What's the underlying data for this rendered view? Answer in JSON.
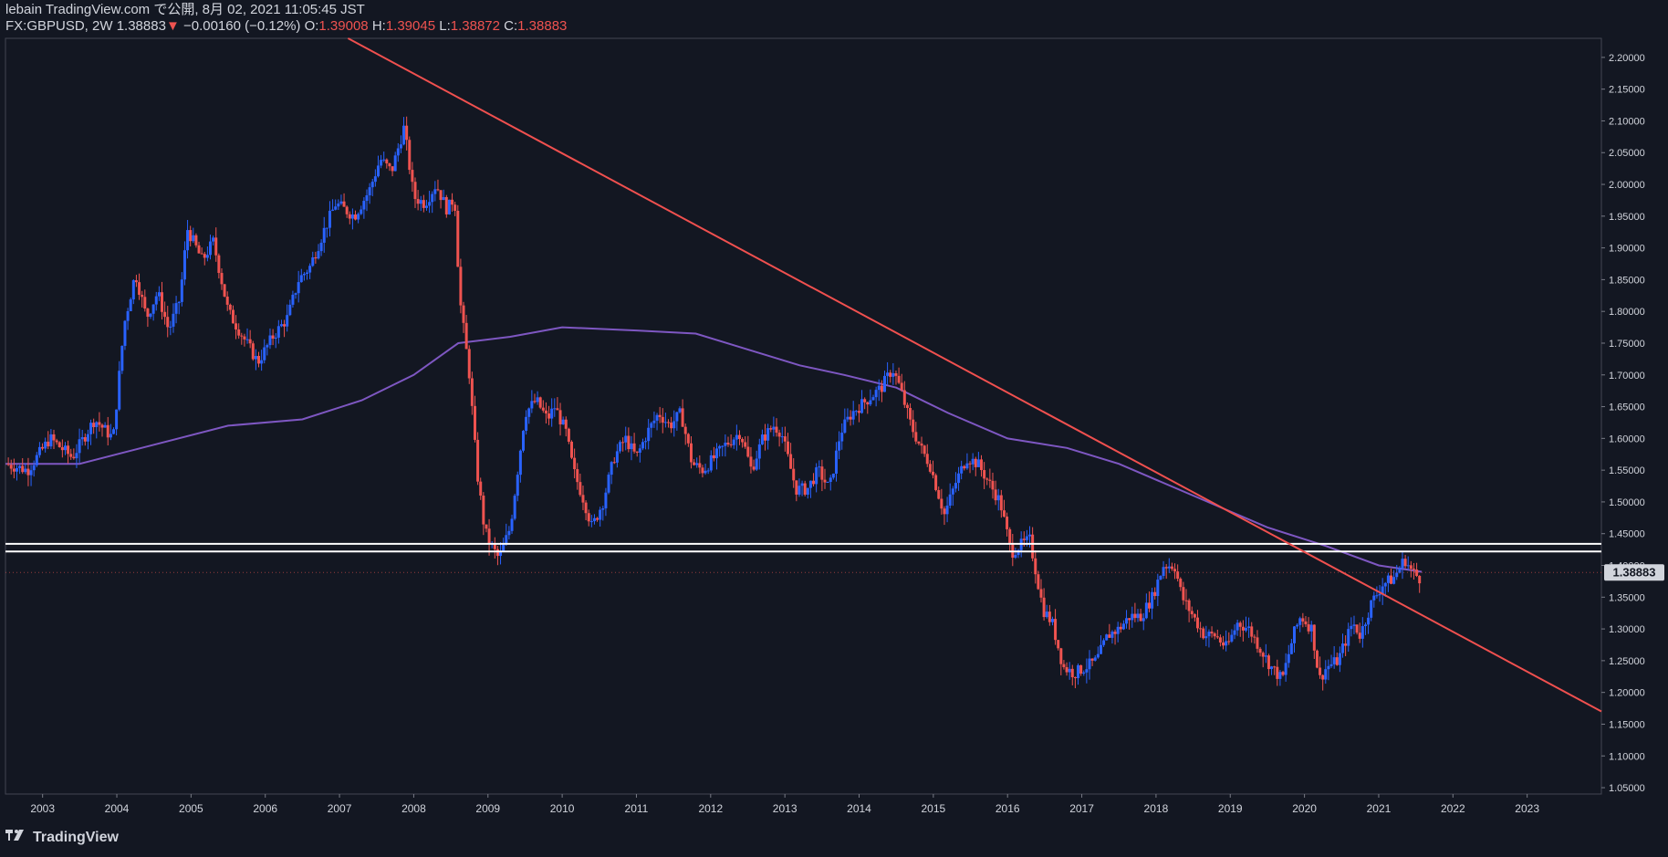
{
  "header": {
    "publish_line": "lebain TradingView.com で公開, 8月 02, 2021 11:05:45 JST",
    "symbol": "FX:GBPUSD, 2W",
    "last": "1.38883",
    "change_arrow": "▼",
    "change": "−0.00160 (−0.12%)",
    "o_label": "O:",
    "o_value": "1.39008",
    "h_label": "H:",
    "h_value": "1.39045",
    "l_label": "L:",
    "l_value": "1.38872",
    "c_label": "C:",
    "c_value": "1.38883"
  },
  "footer": {
    "brand": "TradingView",
    "logo_icon": "tradingview-logo-icon"
  },
  "colors": {
    "background": "#131722",
    "up": "#2962ff",
    "down": "#ef5350",
    "ma": "#7e57c2",
    "trendline": "#f0504f",
    "hline": "#ffffff",
    "price_label_bg": "#d1d4dc",
    "text": "#d1d4dc"
  },
  "chart_data": {
    "type": "candlestick",
    "symbol": "GBPUSD",
    "timeframe": "2W",
    "xlim": [
      2002.5,
      2024.0
    ],
    "ylim": [
      1.04,
      2.23
    ],
    "x_ticks": [
      "2003",
      "2004",
      "2005",
      "2006",
      "2007",
      "2008",
      "2009",
      "2010",
      "2011",
      "2012",
      "2013",
      "2014",
      "2015",
      "2016",
      "2017",
      "2018",
      "2019",
      "2020",
      "2021",
      "2022",
      "2023"
    ],
    "y_ticks": [
      "1.05000",
      "1.10000",
      "1.15000",
      "1.20000",
      "1.25000",
      "1.30000",
      "1.35000",
      "1.40000",
      "1.45000",
      "1.50000",
      "1.55000",
      "1.60000",
      "1.65000",
      "1.70000",
      "1.75000",
      "1.80000",
      "1.85000",
      "1.90000",
      "1.95000",
      "2.00000",
      "2.05000",
      "2.10000",
      "2.15000",
      "2.20000"
    ],
    "current_price_label": "1.38883",
    "price_path": [
      [
        2002.5,
        1.56
      ],
      [
        2002.8,
        1.55
      ],
      [
        2003.1,
        1.6
      ],
      [
        2003.4,
        1.57
      ],
      [
        2003.7,
        1.63
      ],
      [
        2003.95,
        1.6
      ],
      [
        2004.1,
        1.78
      ],
      [
        2004.25,
        1.86
      ],
      [
        2004.4,
        1.79
      ],
      [
        2004.55,
        1.83
      ],
      [
        2004.7,
        1.77
      ],
      [
        2004.85,
        1.82
      ],
      [
        2004.95,
        1.93
      ],
      [
        2005.15,
        1.88
      ],
      [
        2005.3,
        1.91
      ],
      [
        2005.5,
        1.8
      ],
      [
        2005.7,
        1.76
      ],
      [
        2005.9,
        1.72
      ],
      [
        2006.1,
        1.76
      ],
      [
        2006.3,
        1.79
      ],
      [
        2006.45,
        1.85
      ],
      [
        2006.6,
        1.87
      ],
      [
        2006.8,
        1.93
      ],
      [
        2006.95,
        1.97
      ],
      [
        2007.2,
        1.95
      ],
      [
        2007.4,
        1.99
      ],
      [
        2007.55,
        2.04
      ],
      [
        2007.7,
        2.02
      ],
      [
        2007.87,
        2.09
      ],
      [
        2008.0,
        1.98
      ],
      [
        2008.15,
        1.97
      ],
      [
        2008.3,
        2.0
      ],
      [
        2008.45,
        1.96
      ],
      [
        2008.55,
        1.98
      ],
      [
        2008.62,
        1.82
      ],
      [
        2008.75,
        1.7
      ],
      [
        2008.85,
        1.55
      ],
      [
        2008.95,
        1.46
      ],
      [
        2009.0,
        1.44
      ],
      [
        2009.15,
        1.41
      ],
      [
        2009.3,
        1.46
      ],
      [
        2009.4,
        1.55
      ],
      [
        2009.5,
        1.64
      ],
      [
        2009.65,
        1.66
      ],
      [
        2009.8,
        1.63
      ],
      [
        2009.9,
        1.65
      ],
      [
        2010.05,
        1.61
      ],
      [
        2010.15,
        1.55
      ],
      [
        2010.3,
        1.5
      ],
      [
        2010.4,
        1.46
      ],
      [
        2010.55,
        1.5
      ],
      [
        2010.7,
        1.57
      ],
      [
        2010.85,
        1.6
      ],
      [
        2011.0,
        1.57
      ],
      [
        2011.15,
        1.61
      ],
      [
        2011.3,
        1.64
      ],
      [
        2011.45,
        1.62
      ],
      [
        2011.6,
        1.64
      ],
      [
        2011.75,
        1.56
      ],
      [
        2011.9,
        1.55
      ],
      [
        2012.05,
        1.57
      ],
      [
        2012.2,
        1.59
      ],
      [
        2012.4,
        1.61
      ],
      [
        2012.55,
        1.55
      ],
      [
        2012.7,
        1.6
      ],
      [
        2012.85,
        1.62
      ],
      [
        2012.95,
        1.61
      ],
      [
        2013.15,
        1.52
      ],
      [
        2013.3,
        1.52
      ],
      [
        2013.45,
        1.55
      ],
      [
        2013.6,
        1.52
      ],
      [
        2013.75,
        1.61
      ],
      [
        2013.9,
        1.64
      ],
      [
        2014.1,
        1.66
      ],
      [
        2014.3,
        1.68
      ],
      [
        2014.45,
        1.71
      ],
      [
        2014.55,
        1.68
      ],
      [
        2014.7,
        1.62
      ],
      [
        2014.85,
        1.58
      ],
      [
        2014.95,
        1.56
      ],
      [
        2015.15,
        1.48
      ],
      [
        2015.3,
        1.53
      ],
      [
        2015.45,
        1.57
      ],
      [
        2015.6,
        1.56
      ],
      [
        2015.75,
        1.53
      ],
      [
        2015.9,
        1.5
      ],
      [
        2016.05,
        1.42
      ],
      [
        2016.15,
        1.43
      ],
      [
        2016.3,
        1.44
      ],
      [
        2016.48,
        1.33
      ],
      [
        2016.6,
        1.31
      ],
      [
        2016.75,
        1.24
      ],
      [
        2016.9,
        1.23
      ],
      [
        2017.05,
        1.24
      ],
      [
        2017.2,
        1.25
      ],
      [
        2017.35,
        1.29
      ],
      [
        2017.5,
        1.3
      ],
      [
        2017.65,
        1.32
      ],
      [
        2017.8,
        1.32
      ],
      [
        2017.95,
        1.35
      ],
      [
        2018.1,
        1.4
      ],
      [
        2018.25,
        1.4
      ],
      [
        2018.35,
        1.35
      ],
      [
        2018.5,
        1.32
      ],
      [
        2018.65,
        1.29
      ],
      [
        2018.8,
        1.29
      ],
      [
        2018.95,
        1.27
      ],
      [
        2019.1,
        1.31
      ],
      [
        2019.25,
        1.3
      ],
      [
        2019.4,
        1.27
      ],
      [
        2019.55,
        1.24
      ],
      [
        2019.7,
        1.22
      ],
      [
        2019.85,
        1.29
      ],
      [
        2019.95,
        1.32
      ],
      [
        2020.1,
        1.3
      ],
      [
        2020.2,
        1.22
      ],
      [
        2020.3,
        1.24
      ],
      [
        2020.45,
        1.25
      ],
      [
        2020.55,
        1.28
      ],
      [
        2020.65,
        1.31
      ],
      [
        2020.75,
        1.29
      ],
      [
        2020.9,
        1.34
      ],
      [
        2021.05,
        1.37
      ],
      [
        2021.2,
        1.38
      ],
      [
        2021.35,
        1.41
      ],
      [
        2021.45,
        1.39
      ],
      [
        2021.55,
        1.38
      ],
      [
        2021.58,
        1.38883
      ]
    ],
    "moving_average": [
      [
        2002.5,
        1.56
      ],
      [
        2003.5,
        1.56
      ],
      [
        2004.5,
        1.59
      ],
      [
        2005.5,
        1.62
      ],
      [
        2006.5,
        1.63
      ],
      [
        2007.3,
        1.66
      ],
      [
        2008.0,
        1.7
      ],
      [
        2008.6,
        1.75
      ],
      [
        2009.3,
        1.76
      ],
      [
        2010.0,
        1.775
      ],
      [
        2011.0,
        1.77
      ],
      [
        2011.8,
        1.765
      ],
      [
        2012.5,
        1.74
      ],
      [
        2013.2,
        1.715
      ],
      [
        2013.8,
        1.7
      ],
      [
        2014.5,
        1.68
      ],
      [
        2015.2,
        1.64
      ],
      [
        2016.0,
        1.6
      ],
      [
        2016.8,
        1.585
      ],
      [
        2017.5,
        1.56
      ],
      [
        2018.5,
        1.51
      ],
      [
        2019.5,
        1.46
      ],
      [
        2020.3,
        1.43
      ],
      [
        2021.0,
        1.4
      ],
      [
        2021.58,
        1.39
      ]
    ],
    "trendline": {
      "from": [
        2006.0,
        2.3
      ],
      "to": [
        2024.0,
        1.17
      ]
    },
    "horizontal_lines": [
      1.434,
      1.422
    ]
  }
}
